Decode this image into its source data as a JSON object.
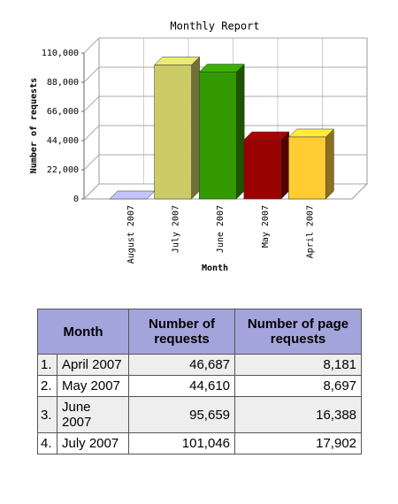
{
  "chart_data": {
    "type": "bar",
    "title": "Monthly Report",
    "ylabel": "Number of requests",
    "xlabel": "Month",
    "categories": [
      "August 2007",
      "July 2007",
      "June 2007",
      "May 2007",
      "April 2007"
    ],
    "values": [
      0,
      101046,
      95659,
      44610,
      46687
    ],
    "colors": [
      "#aaaadd",
      "#cccc66",
      "#339900",
      "#990000",
      "#ffcc33"
    ],
    "ylim": [
      0,
      110000
    ],
    "yticks": [
      0,
      {
        "value": 22000,
        "label": "22,000"
      },
      {
        "value": 44000,
        "label": "44,000"
      },
      {
        "value": 66000,
        "label": "66,000"
      },
      {
        "value": 88000,
        "label": "88,000"
      },
      {
        "value": 110000,
        "label": "110,000"
      }
    ],
    "grid": true
  },
  "table": {
    "header": [
      "Month",
      "Number of requests",
      "Number of page requests"
    ],
    "rows": [
      [
        "1.",
        "April 2007",
        "46,687",
        "8,181"
      ],
      [
        "2.",
        "May 2007",
        "44,610",
        "8,697"
      ],
      [
        "3.",
        "June 2007",
        "95,659",
        "16,388"
      ],
      [
        "4.",
        "July 2007",
        "101,046",
        "17,902"
      ]
    ]
  }
}
